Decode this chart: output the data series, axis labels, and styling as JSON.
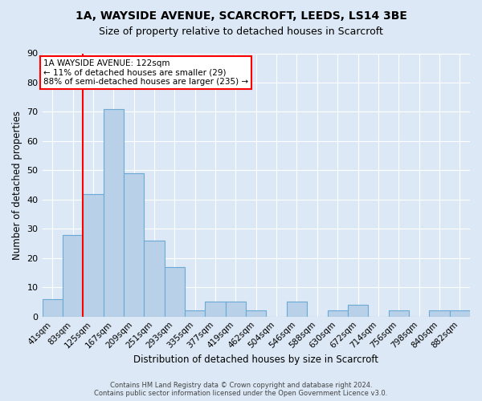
{
  "title1": "1A, WAYSIDE AVENUE, SCARCROFT, LEEDS, LS14 3BE",
  "title2": "Size of property relative to detached houses in Scarcroft",
  "xlabel": "Distribution of detached houses by size in Scarcroft",
  "ylabel": "Number of detached properties",
  "categories": [
    "41sqm",
    "83sqm",
    "125sqm",
    "167sqm",
    "209sqm",
    "251sqm",
    "293sqm",
    "335sqm",
    "377sqm",
    "419sqm",
    "462sqm",
    "504sqm",
    "546sqm",
    "588sqm",
    "630sqm",
    "672sqm",
    "714sqm",
    "756sqm",
    "798sqm",
    "840sqm",
    "882sqm"
  ],
  "values": [
    6,
    28,
    42,
    71,
    49,
    26,
    17,
    2,
    5,
    5,
    2,
    0,
    5,
    0,
    2,
    4,
    0,
    2,
    0,
    2,
    2
  ],
  "bar_color": "#b8d0e8",
  "bar_edge_color": "#6aaad4",
  "bg_color": "#dce8f5",
  "annotation_text": "1A WAYSIDE AVENUE: 122sqm\n← 11% of detached houses are smaller (29)\n88% of semi-detached houses are larger (235) →",
  "annotation_box_color": "white",
  "annotation_box_edge_color": "red",
  "ylim": [
    0,
    90
  ],
  "yticks": [
    0,
    10,
    20,
    30,
    40,
    50,
    60,
    70,
    80,
    90
  ],
  "footer": "Contains HM Land Registry data © Crown copyright and database right 2024.\nContains public sector information licensed under the Open Government Licence v3.0.",
  "title1_fontsize": 10,
  "title2_fontsize": 9,
  "xlabel_fontsize": 8.5,
  "ylabel_fontsize": 8.5,
  "red_line_index": 2.5
}
